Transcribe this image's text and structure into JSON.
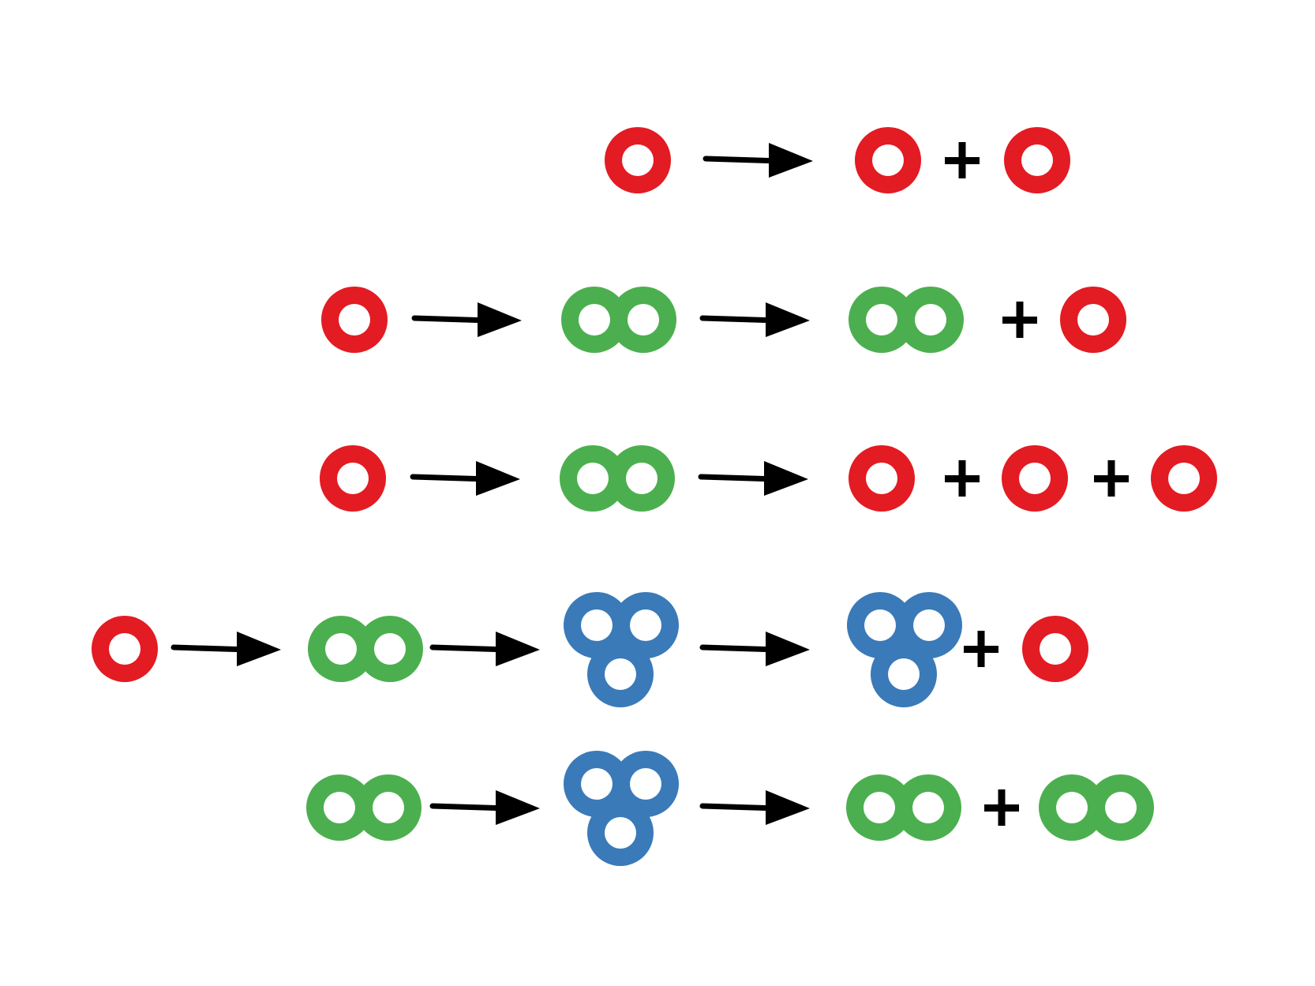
{
  "colors": {
    "single": "#e31b23",
    "double": "#4caf4f",
    "triple": "#3a7ab8",
    "arrow": "#000000",
    "plus": "#000000"
  },
  "rows": [
    {
      "id": "row-1",
      "items": [
        {
          "type": "molecule",
          "kind": "single"
        },
        {
          "type": "arrow"
        },
        {
          "type": "molecule",
          "kind": "single"
        },
        {
          "type": "plus"
        },
        {
          "type": "molecule",
          "kind": "single"
        }
      ]
    },
    {
      "id": "row-2",
      "items": [
        {
          "type": "molecule",
          "kind": "single"
        },
        {
          "type": "arrow"
        },
        {
          "type": "molecule",
          "kind": "double"
        },
        {
          "type": "arrow"
        },
        {
          "type": "molecule",
          "kind": "double"
        },
        {
          "type": "plus"
        },
        {
          "type": "molecule",
          "kind": "single"
        }
      ]
    },
    {
      "id": "row-3",
      "items": [
        {
          "type": "molecule",
          "kind": "single"
        },
        {
          "type": "arrow"
        },
        {
          "type": "molecule",
          "kind": "double"
        },
        {
          "type": "arrow"
        },
        {
          "type": "molecule",
          "kind": "single"
        },
        {
          "type": "plus"
        },
        {
          "type": "molecule",
          "kind": "single"
        },
        {
          "type": "plus"
        },
        {
          "type": "molecule",
          "kind": "single"
        }
      ]
    },
    {
      "id": "row-4",
      "items": [
        {
          "type": "molecule",
          "kind": "single"
        },
        {
          "type": "arrow"
        },
        {
          "type": "molecule",
          "kind": "double"
        },
        {
          "type": "arrow"
        },
        {
          "type": "molecule",
          "kind": "triple"
        },
        {
          "type": "arrow"
        },
        {
          "type": "molecule",
          "kind": "triple"
        },
        {
          "type": "plus"
        },
        {
          "type": "molecule",
          "kind": "single"
        }
      ]
    },
    {
      "id": "row-5",
      "items": [
        {
          "type": "molecule",
          "kind": "double"
        },
        {
          "type": "arrow"
        },
        {
          "type": "molecule",
          "kind": "triple"
        },
        {
          "type": "arrow"
        },
        {
          "type": "molecule",
          "kind": "double"
        },
        {
          "type": "plus"
        },
        {
          "type": "molecule",
          "kind": "double"
        }
      ]
    }
  ]
}
